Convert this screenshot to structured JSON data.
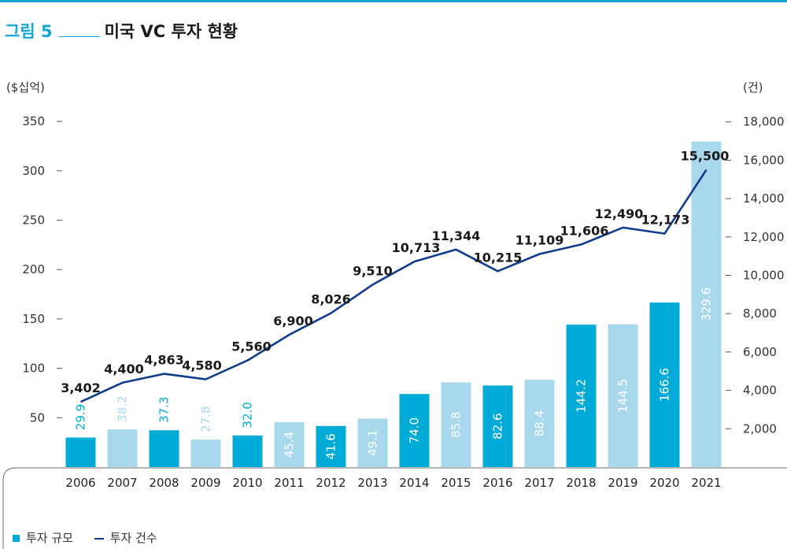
{
  "figure": {
    "label": "그림 5",
    "title": "미국 VC 투자 현황"
  },
  "legend": {
    "bar_label": "투자 규모",
    "line_label": "투자 건수"
  },
  "chart_data": {
    "type": "bar",
    "categories": [
      "2006",
      "2007",
      "2008",
      "2009",
      "2010",
      "2011",
      "2012",
      "2013",
      "2014",
      "2015",
      "2016",
      "2017",
      "2018",
      "2019",
      "2020",
      "2021"
    ],
    "series": [
      {
        "name": "투자 규모",
        "type": "bar",
        "axis": "left",
        "values": [
          29.9,
          38.2,
          37.3,
          27.8,
          32.0,
          45.4,
          41.6,
          49.1,
          74.0,
          85.8,
          82.6,
          88.4,
          144.2,
          144.5,
          166.6,
          329.6
        ],
        "labels": [
          "29.9",
          "38.2",
          "37.3",
          "27.8",
          "32.0",
          "45.4",
          "41.6",
          "49.1",
          "74.0",
          "85.8",
          "82.6",
          "88.4",
          "144.2",
          "144.5",
          "166.6",
          "329.6"
        ],
        "colors": [
          "#00acd7",
          "#a8d8ec",
          "#00acd7",
          "#a8d8ec",
          "#00acd7",
          "#a8d8ec",
          "#00acd7",
          "#a8d8ec",
          "#00acd7",
          "#a8d8ec",
          "#00acd7",
          "#a8d8ec",
          "#00acd7",
          "#a8d8ec",
          "#00acd7",
          "#a8d8ec"
        ]
      },
      {
        "name": "투자 건수",
        "type": "line",
        "axis": "right",
        "color": "#0f3c8c",
        "values": [
          3402,
          4400,
          4863,
          4580,
          5560,
          6900,
          8026,
          9510,
          10713,
          11344,
          10215,
          11109,
          11606,
          12490,
          12173,
          15500
        ],
        "labels": [
          "3,402",
          "4,400",
          "4,863",
          "4,580",
          "5,560",
          "6,900",
          "8,026",
          "9,510",
          "10,713",
          "11,344",
          "10,215",
          "11,109",
          "11,606",
          "12,490",
          "12,173",
          "15,500"
        ]
      }
    ],
    "left_axis": {
      "unit": "($십억)",
      "ylim": [
        0,
        350
      ],
      "ticks": [
        50,
        100,
        150,
        200,
        250,
        300,
        350
      ],
      "tick_labels": [
        "50",
        "100",
        "150",
        "200",
        "250",
        "300",
        "350"
      ]
    },
    "right_axis": {
      "unit": "(건)",
      "ylim": [
        0,
        18000
      ],
      "ticks": [
        2000,
        4000,
        6000,
        8000,
        10000,
        12000,
        14000,
        16000,
        18000
      ],
      "tick_labels": [
        "2,000",
        "4,000",
        "6,000",
        "8,000",
        "10,000",
        "12,000",
        "14,000",
        "16,000",
        "18,000"
      ]
    },
    "grid": false,
    "legend_position": "bottom-left"
  }
}
